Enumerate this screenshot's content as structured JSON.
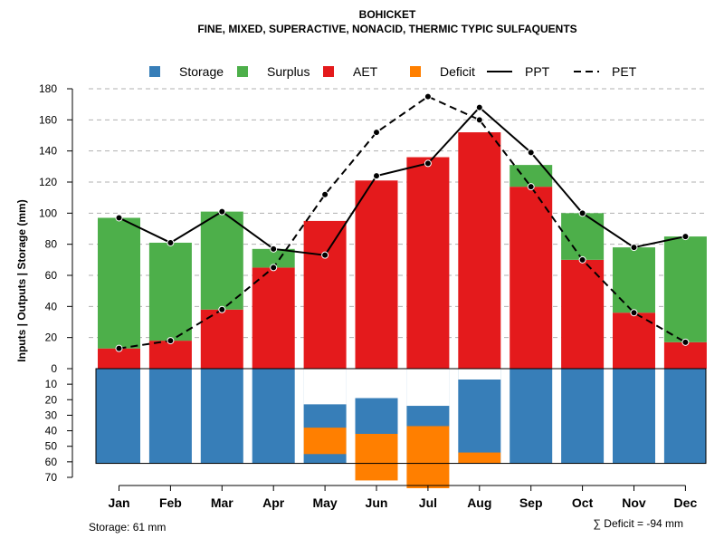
{
  "chart_data": {
    "type": "bar",
    "title": "BOHICKET",
    "subtitle": "FINE, MIXED, SUPERACTIVE, NONACID, THERMIC TYPIC SULFAQUENTS",
    "ylabel": "Inputs | Outputs | Storage    (mm)",
    "xlabel": "",
    "ylim_upper": [
      0,
      180
    ],
    "ylim_lower": [
      0,
      70
    ],
    "y_ticks_upper": [
      "0",
      "20",
      "40",
      "60",
      "80",
      "100",
      "120",
      "140",
      "160",
      "180"
    ],
    "y_ticks_lower": [
      "10",
      "20",
      "30",
      "40",
      "50",
      "60",
      "70"
    ],
    "categories": [
      "Jan",
      "Feb",
      "Mar",
      "Apr",
      "May",
      "Jun",
      "Jul",
      "Aug",
      "Sep",
      "Oct",
      "Nov",
      "Dec"
    ],
    "legend": [
      {
        "name": "Storage",
        "kind": "box",
        "color": "#377EB8"
      },
      {
        "name": "Surplus",
        "kind": "box",
        "color": "#4DAF4A"
      },
      {
        "name": "AET",
        "kind": "box",
        "color": "#E41A1C"
      },
      {
        "name": "Deficit",
        "kind": "box",
        "color": "#FF7F00"
      },
      {
        "name": "PPT",
        "kind": "line",
        "dash": "solid",
        "color": "#000000"
      },
      {
        "name": "PET",
        "kind": "line",
        "dash": "dashed",
        "color": "#000000"
      }
    ],
    "series": [
      {
        "name": "AET",
        "color": "#E41A1C",
        "values": [
          13,
          18,
          38,
          65,
          95,
          121,
          136,
          152,
          117,
          70,
          36,
          17
        ]
      },
      {
        "name": "Surplus",
        "color": "#4DAF4A",
        "values": [
          84,
          63,
          63,
          12,
          0,
          0,
          0,
          0,
          14,
          30,
          42,
          68
        ]
      },
      {
        "name": "Storage",
        "color": "#377EB8",
        "values": [
          61,
          61,
          61,
          61,
          38,
          42,
          37,
          54,
          61,
          61,
          61,
          61
        ]
      },
      {
        "name": "Deficit",
        "color": "#FF7F00",
        "values": [
          0,
          0,
          0,
          0,
          17,
          30,
          40,
          7,
          0,
          0,
          0,
          0
        ]
      },
      {
        "name": "PPT",
        "color": "#000000",
        "values": [
          97,
          81,
          101,
          77,
          73,
          124,
          132,
          168,
          139,
          100,
          78,
          85
        ]
      },
      {
        "name": "PET",
        "color": "#000000",
        "values": [
          13,
          18,
          38,
          65,
          112,
          152,
          175,
          160,
          117,
          70,
          36,
          17
        ]
      }
    ],
    "storage_capacity": 61,
    "footer_left": "Storage: 61 mm",
    "footer_right": "∑ Deficit = -94 mm"
  }
}
